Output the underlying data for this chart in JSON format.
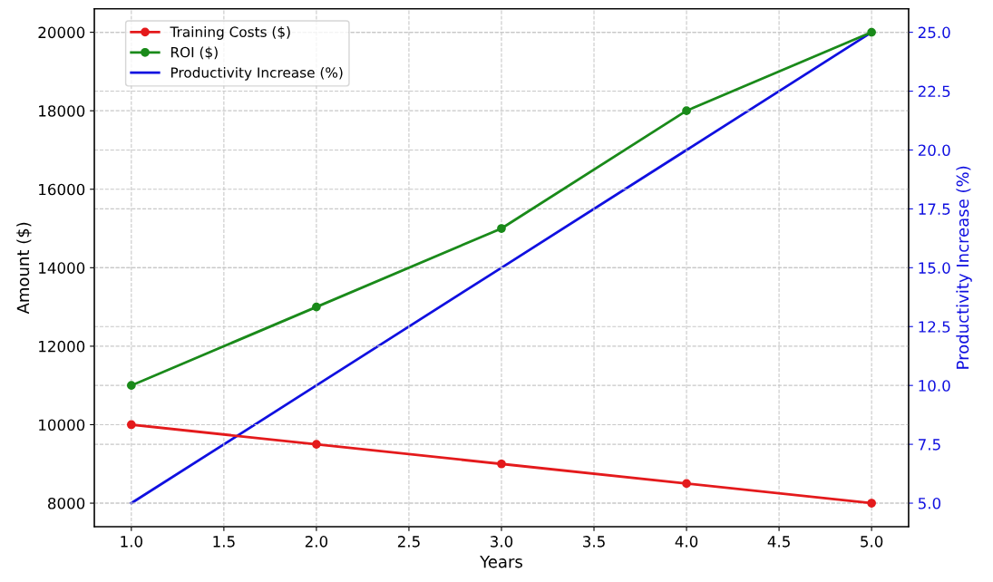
{
  "chart_data": {
    "type": "line",
    "xlabel": "Years",
    "ylabel": "Amount ($)",
    "y2label": "Productivity Increase (%)",
    "x": [
      1,
      2,
      3,
      4,
      5
    ],
    "series": [
      {
        "name": "Training Costs ($)",
        "color": "#e41a1c",
        "values": [
          10000,
          9500,
          9000,
          8500,
          8000
        ],
        "marker": "circle"
      },
      {
        "name": "ROI ($)",
        "color": "#1a8a1a",
        "values": [
          11000,
          13000,
          15000,
          18000,
          20000
        ],
        "marker": "circle"
      },
      {
        "name": "Productivity Increase (%)",
        "color": "#1010e0",
        "values": [
          5,
          10,
          15,
          20,
          25
        ],
        "axis": "y2",
        "marker": "none"
      }
    ],
    "xlim": [
      0.8,
      5.2
    ],
    "xticks": [
      {
        "value": 1,
        "label": "1.0"
      },
      {
        "value": 1.5,
        "label": "1.5"
      },
      {
        "value": 2,
        "label": "2.0"
      },
      {
        "value": 2.5,
        "label": "2.5"
      },
      {
        "value": 3,
        "label": "3.0"
      },
      {
        "value": 3.5,
        "label": "3.5"
      },
      {
        "value": 4,
        "label": "4.0"
      },
      {
        "value": 4.5,
        "label": "4.5"
      },
      {
        "value": 5,
        "label": "5.0"
      }
    ],
    "ylim": [
      7400,
      20600
    ],
    "yticks": [
      8000,
      10000,
      12000,
      14000,
      16000,
      18000,
      20000
    ],
    "y2lim": [
      4,
      26
    ],
    "y2ticks": [
      {
        "value": 5,
        "label": "5.0"
      },
      {
        "value": 7.5,
        "label": "7.5"
      },
      {
        "value": 10,
        "label": "10.0"
      },
      {
        "value": 12.5,
        "label": "12.5"
      },
      {
        "value": 15,
        "label": "15.0"
      },
      {
        "value": 17.5,
        "label": "17.5"
      },
      {
        "value": 20,
        "label": "20.0"
      },
      {
        "value": 22.5,
        "label": "22.5"
      },
      {
        "value": 25,
        "label": "25.0"
      }
    ],
    "grid": true,
    "legend": "top left",
    "line_style": "solid"
  }
}
